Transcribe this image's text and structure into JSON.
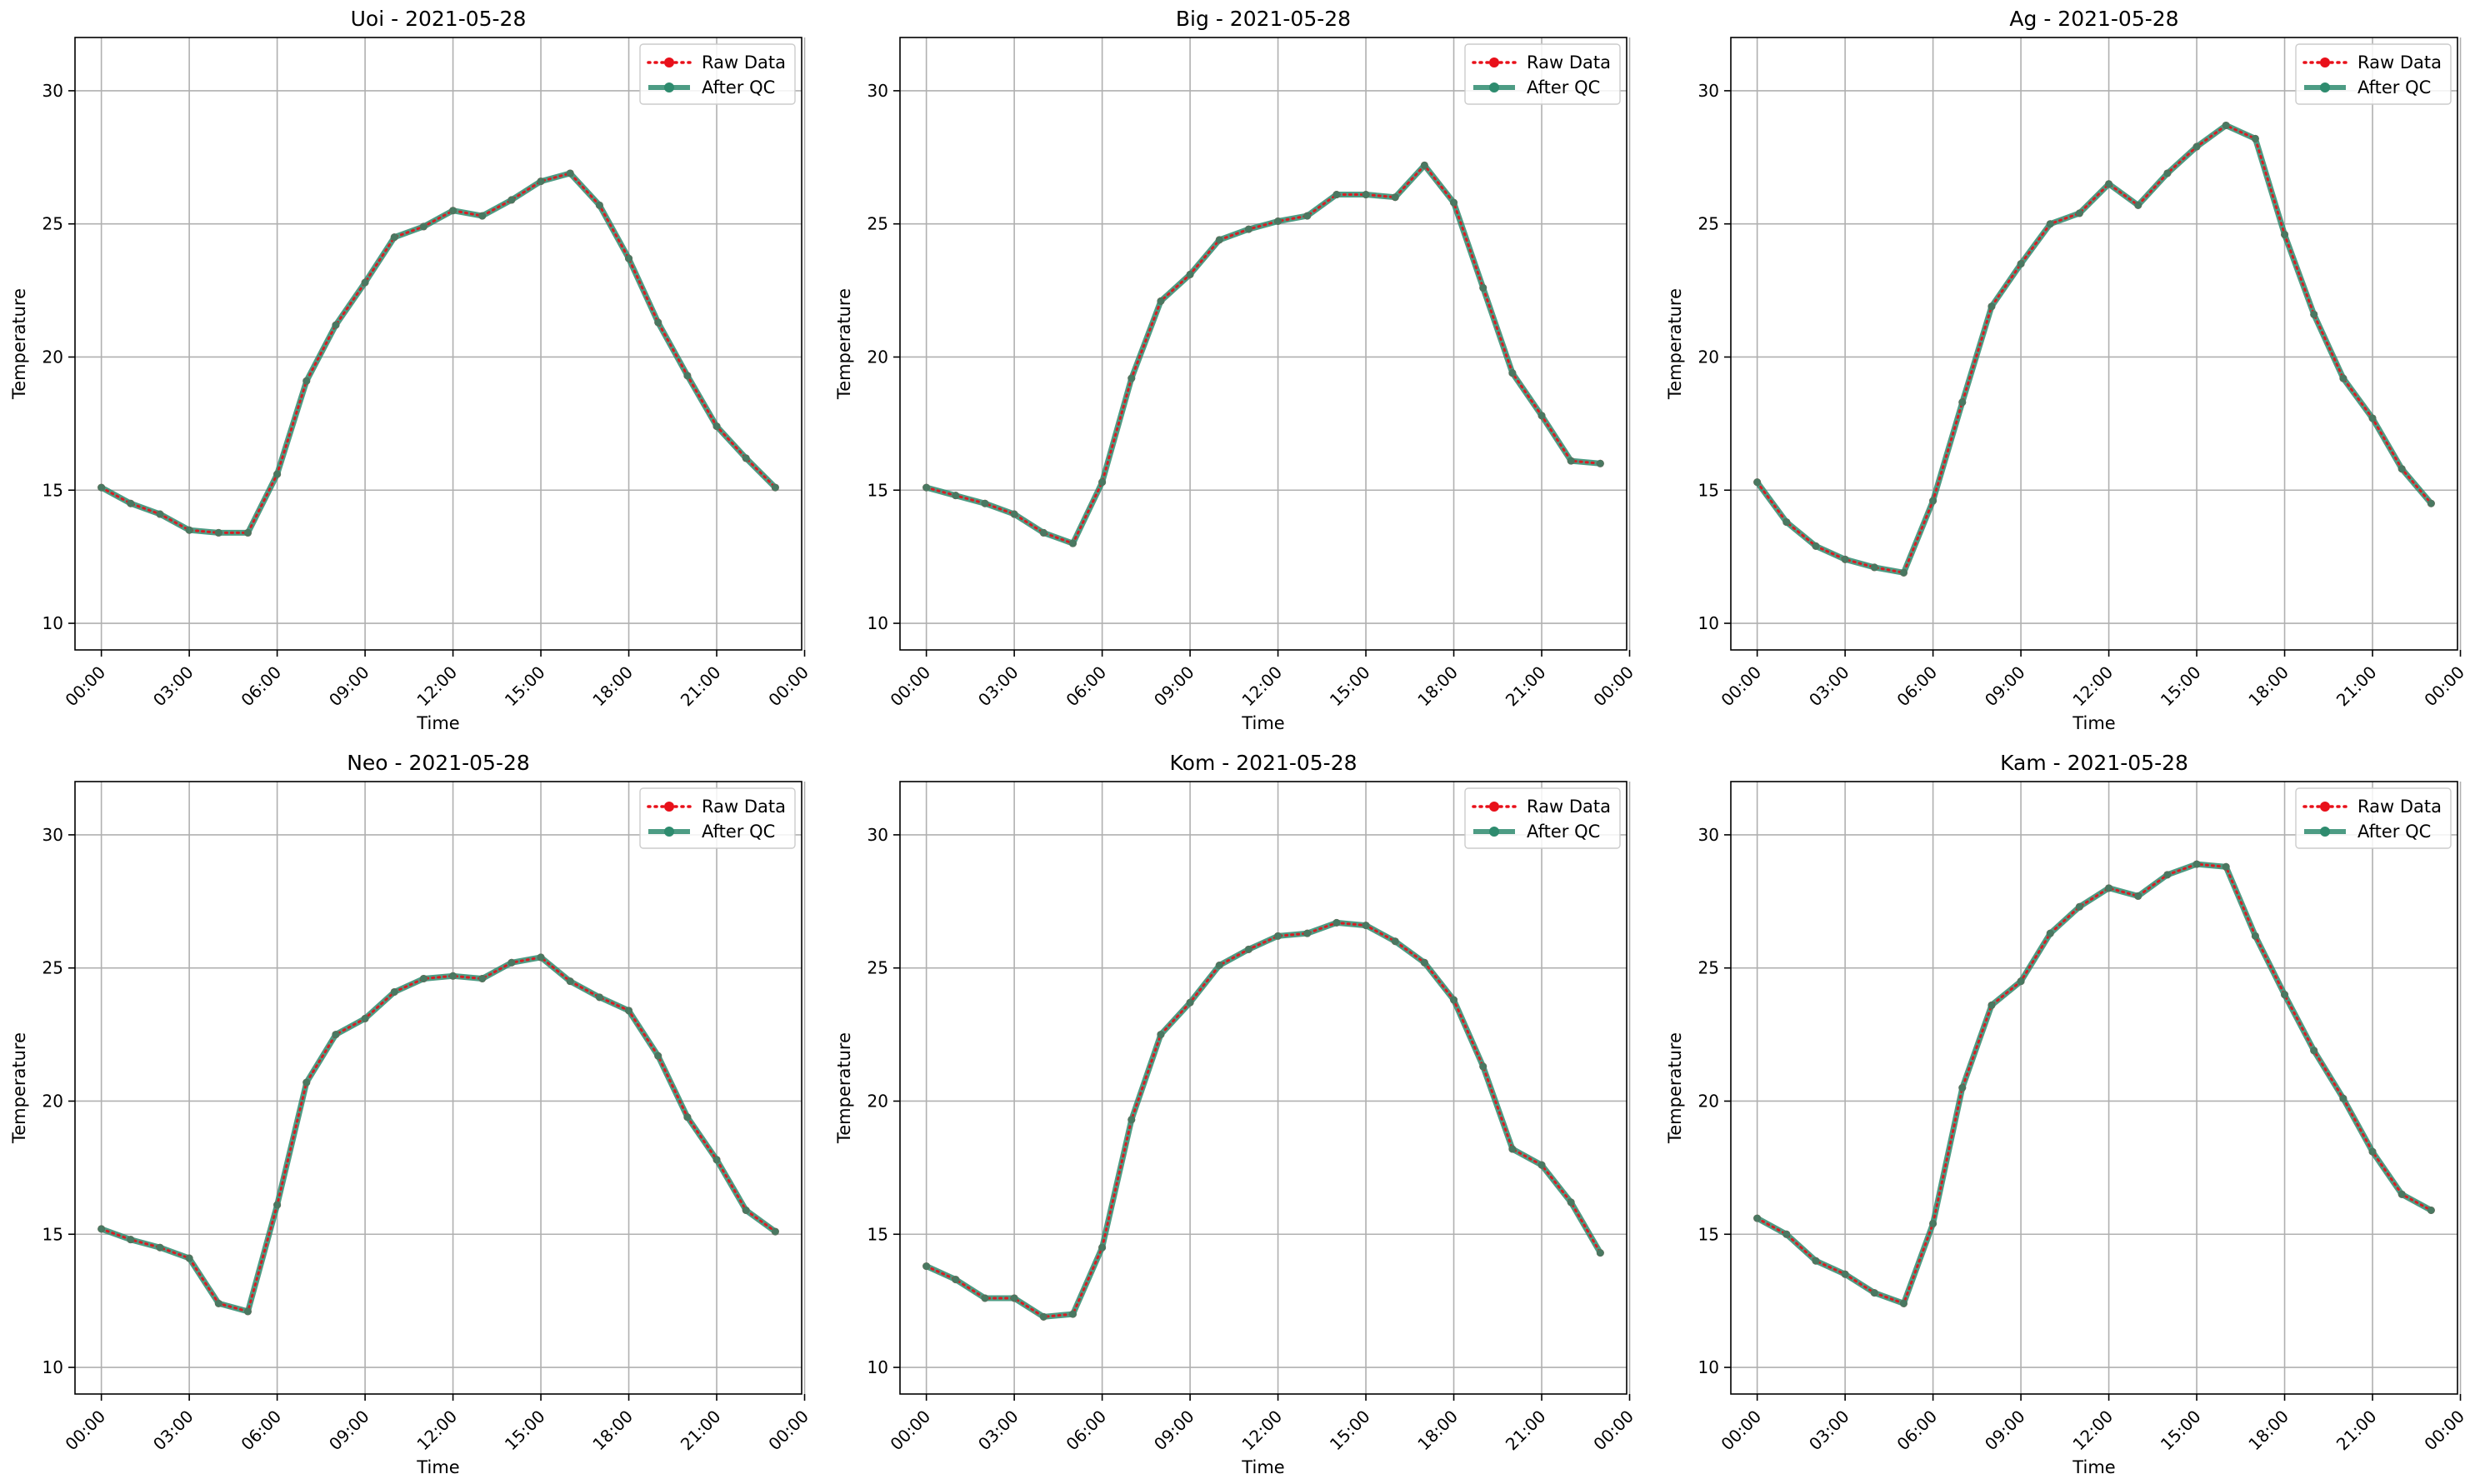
{
  "figure": {
    "charts": [
      {
        "title": "Uoi - 2021-05-28"
      },
      {
        "title": "Big - 2021-05-28"
      },
      {
        "title": "Ag - 2021-05-28"
      },
      {
        "title": "Neo - 2021-05-28"
      },
      {
        "title": "Kom - 2021-05-28"
      },
      {
        "title": "Kam - 2021-05-28"
      }
    ]
  },
  "colors": {
    "raw": "#e8101a",
    "qc": "#2e8b6e",
    "grid": "#b0b0b0"
  },
  "chart_data": [
    {
      "type": "line",
      "title": "Uoi - 2021-05-28",
      "xlabel": "Time",
      "ylabel": "Temperature",
      "xlim": [
        -0.9,
        23.9
      ],
      "ylim": [
        9,
        32
      ],
      "xticks": [
        0,
        3,
        6,
        9,
        12,
        15,
        18,
        21,
        24
      ],
      "xticklabels": [
        "00:00",
        "03:00",
        "06:00",
        "09:00",
        "12:00",
        "15:00",
        "18:00",
        "21:00",
        "00:00"
      ],
      "yticks": [
        10,
        15,
        20,
        25,
        30
      ],
      "grid": true,
      "legend": "top-right",
      "x": [
        0,
        1,
        2,
        3,
        4,
        5,
        6,
        7,
        8,
        9,
        10,
        11,
        12,
        13,
        14,
        15,
        16,
        17,
        18,
        19,
        20,
        21,
        22,
        23
      ],
      "series": [
        {
          "name": "Raw Data",
          "style": "dotted",
          "values": [
            15.1,
            14.5,
            14.1,
            13.5,
            13.4,
            13.4,
            15.6,
            19.1,
            21.2,
            22.8,
            24.5,
            24.9,
            25.5,
            25.3,
            25.9,
            26.6,
            26.9,
            25.7,
            23.7,
            21.3,
            19.3,
            17.4,
            16.2,
            15.1
          ]
        },
        {
          "name": "After QC",
          "style": "solid",
          "values": [
            15.1,
            14.5,
            14.1,
            13.5,
            13.4,
            13.4,
            15.6,
            19.1,
            21.2,
            22.8,
            24.5,
            24.9,
            25.5,
            25.3,
            25.9,
            26.6,
            26.9,
            25.7,
            23.7,
            21.3,
            19.3,
            17.4,
            16.2,
            15.1
          ]
        }
      ]
    },
    {
      "type": "line",
      "title": "Big - 2021-05-28",
      "xlabel": "Time",
      "ylabel": "Temperature",
      "xlim": [
        -0.9,
        23.9
      ],
      "ylim": [
        9,
        32
      ],
      "xticks": [
        0,
        3,
        6,
        9,
        12,
        15,
        18,
        21,
        24
      ],
      "xticklabels": [
        "00:00",
        "03:00",
        "06:00",
        "09:00",
        "12:00",
        "15:00",
        "18:00",
        "21:00",
        "00:00"
      ],
      "yticks": [
        10,
        15,
        20,
        25,
        30
      ],
      "grid": true,
      "legend": "top-right",
      "x": [
        0,
        1,
        2,
        3,
        4,
        5,
        6,
        7,
        8,
        9,
        10,
        11,
        12,
        13,
        14,
        15,
        16,
        17,
        18,
        19,
        20,
        21,
        22,
        23
      ],
      "series": [
        {
          "name": "Raw Data",
          "style": "dotted",
          "values": [
            15.1,
            14.8,
            14.5,
            14.1,
            13.4,
            13.0,
            15.3,
            19.2,
            22.1,
            23.1,
            24.4,
            24.8,
            25.1,
            25.3,
            26.1,
            26.1,
            26.0,
            27.2,
            25.8,
            22.6,
            19.4,
            17.8,
            16.1,
            16.0
          ]
        },
        {
          "name": "After QC",
          "style": "solid",
          "values": [
            15.1,
            14.8,
            14.5,
            14.1,
            13.4,
            13.0,
            15.3,
            19.2,
            22.1,
            23.1,
            24.4,
            24.8,
            25.1,
            25.3,
            26.1,
            26.1,
            26.0,
            27.2,
            25.8,
            22.6,
            19.4,
            17.8,
            16.1,
            16.0
          ]
        }
      ]
    },
    {
      "type": "line",
      "title": "Ag - 2021-05-28",
      "xlabel": "Time",
      "ylabel": "Temperature",
      "xlim": [
        -0.9,
        23.9
      ],
      "ylim": [
        9,
        32
      ],
      "xticks": [
        0,
        3,
        6,
        9,
        12,
        15,
        18,
        21,
        24
      ],
      "xticklabels": [
        "00:00",
        "03:00",
        "06:00",
        "09:00",
        "12:00",
        "15:00",
        "18:00",
        "21:00",
        "00:00"
      ],
      "yticks": [
        10,
        15,
        20,
        25,
        30
      ],
      "grid": true,
      "legend": "top-right",
      "x": [
        0,
        1,
        2,
        3,
        4,
        5,
        6,
        7,
        8,
        9,
        10,
        11,
        12,
        13,
        14,
        15,
        16,
        17,
        18,
        19,
        20,
        21,
        22,
        23
      ],
      "series": [
        {
          "name": "Raw Data",
          "style": "dotted",
          "values": [
            15.3,
            13.8,
            12.9,
            12.4,
            12.1,
            11.9,
            14.6,
            18.3,
            21.9,
            23.5,
            25.0,
            25.4,
            26.5,
            25.7,
            26.9,
            27.9,
            28.7,
            28.2,
            24.6,
            21.6,
            19.2,
            17.7,
            15.8,
            14.5
          ]
        },
        {
          "name": "After QC",
          "style": "solid",
          "values": [
            15.3,
            13.8,
            12.9,
            12.4,
            12.1,
            11.9,
            14.6,
            18.3,
            21.9,
            23.5,
            25.0,
            25.4,
            26.5,
            25.7,
            26.9,
            27.9,
            28.7,
            28.2,
            24.6,
            21.6,
            19.2,
            17.7,
            15.8,
            14.5
          ]
        }
      ]
    },
    {
      "type": "line",
      "title": "Neo - 2021-05-28",
      "xlabel": "Time",
      "ylabel": "Temperature",
      "xlim": [
        -0.9,
        23.9
      ],
      "ylim": [
        9,
        32
      ],
      "xticks": [
        0,
        3,
        6,
        9,
        12,
        15,
        18,
        21,
        24
      ],
      "xticklabels": [
        "00:00",
        "03:00",
        "06:00",
        "09:00",
        "12:00",
        "15:00",
        "18:00",
        "21:00",
        "00:00"
      ],
      "yticks": [
        10,
        15,
        20,
        25,
        30
      ],
      "grid": true,
      "legend": "top-right",
      "x": [
        0,
        1,
        2,
        3,
        4,
        5,
        6,
        7,
        8,
        9,
        10,
        11,
        12,
        13,
        14,
        15,
        16,
        17,
        18,
        19,
        20,
        21,
        22,
        23
      ],
      "series": [
        {
          "name": "Raw Data",
          "style": "dotted",
          "values": [
            15.2,
            14.8,
            14.5,
            14.1,
            12.4,
            12.1,
            16.1,
            20.7,
            22.5,
            23.1,
            24.1,
            24.6,
            24.7,
            24.6,
            25.2,
            25.4,
            24.5,
            23.9,
            23.4,
            21.7,
            19.4,
            17.8,
            15.9,
            15.1
          ]
        },
        {
          "name": "After QC",
          "style": "solid",
          "values": [
            15.2,
            14.8,
            14.5,
            14.1,
            12.4,
            12.1,
            16.1,
            20.7,
            22.5,
            23.1,
            24.1,
            24.6,
            24.7,
            24.6,
            25.2,
            25.4,
            24.5,
            23.9,
            23.4,
            21.7,
            19.4,
            17.8,
            15.9,
            15.1
          ]
        }
      ]
    },
    {
      "type": "line",
      "title": "Kom - 2021-05-28",
      "xlabel": "Time",
      "ylabel": "Temperature",
      "xlim": [
        -0.9,
        23.9
      ],
      "ylim": [
        9,
        32
      ],
      "xticks": [
        0,
        3,
        6,
        9,
        12,
        15,
        18,
        21,
        24
      ],
      "xticklabels": [
        "00:00",
        "03:00",
        "06:00",
        "09:00",
        "12:00",
        "15:00",
        "18:00",
        "21:00",
        "00:00"
      ],
      "yticks": [
        10,
        15,
        20,
        25,
        30
      ],
      "grid": true,
      "legend": "top-right",
      "x": [
        0,
        1,
        2,
        3,
        4,
        5,
        6,
        7,
        8,
        9,
        10,
        11,
        12,
        13,
        14,
        15,
        16,
        17,
        18,
        19,
        20,
        21,
        22,
        23
      ],
      "series": [
        {
          "name": "Raw Data",
          "style": "dotted",
          "values": [
            13.8,
            13.3,
            12.6,
            12.6,
            11.9,
            12.0,
            14.5,
            19.3,
            22.5,
            23.7,
            25.1,
            25.7,
            26.2,
            26.3,
            26.7,
            26.6,
            26.0,
            25.2,
            23.8,
            21.3,
            18.2,
            17.6,
            16.2,
            14.3
          ]
        },
        {
          "name": "After QC",
          "style": "solid",
          "values": [
            13.8,
            13.3,
            12.6,
            12.6,
            11.9,
            12.0,
            14.5,
            19.3,
            22.5,
            23.7,
            25.1,
            25.7,
            26.2,
            26.3,
            26.7,
            26.6,
            26.0,
            25.2,
            23.8,
            21.3,
            18.2,
            17.6,
            16.2,
            14.3
          ]
        }
      ]
    },
    {
      "type": "line",
      "title": "Kam - 2021-05-28",
      "xlabel": "Time",
      "ylabel": "Temperature",
      "xlim": [
        -0.9,
        23.9
      ],
      "ylim": [
        9,
        32
      ],
      "xticks": [
        0,
        3,
        6,
        9,
        12,
        15,
        18,
        21,
        24
      ],
      "xticklabels": [
        "00:00",
        "03:00",
        "06:00",
        "09:00",
        "12:00",
        "15:00",
        "18:00",
        "21:00",
        "00:00"
      ],
      "yticks": [
        10,
        15,
        20,
        25,
        30
      ],
      "grid": true,
      "legend": "top-right",
      "x": [
        0,
        1,
        2,
        3,
        4,
        5,
        6,
        7,
        8,
        9,
        10,
        11,
        12,
        13,
        14,
        15,
        16,
        17,
        18,
        19,
        20,
        21,
        22,
        23
      ],
      "series": [
        {
          "name": "Raw Data",
          "style": "dotted",
          "values": [
            15.6,
            15.0,
            14.0,
            13.5,
            12.8,
            12.4,
            15.4,
            20.5,
            23.6,
            24.5,
            26.3,
            27.3,
            28.0,
            27.7,
            28.5,
            28.9,
            28.8,
            26.2,
            24.0,
            21.9,
            20.1,
            18.1,
            16.5,
            15.9
          ]
        },
        {
          "name": "After QC",
          "style": "solid",
          "values": [
            15.6,
            15.0,
            14.0,
            13.5,
            12.8,
            12.4,
            15.4,
            20.5,
            23.6,
            24.5,
            26.3,
            27.3,
            28.0,
            27.7,
            28.5,
            28.9,
            28.8,
            26.2,
            24.0,
            21.9,
            20.1,
            18.1,
            16.5,
            15.9
          ]
        }
      ]
    }
  ]
}
